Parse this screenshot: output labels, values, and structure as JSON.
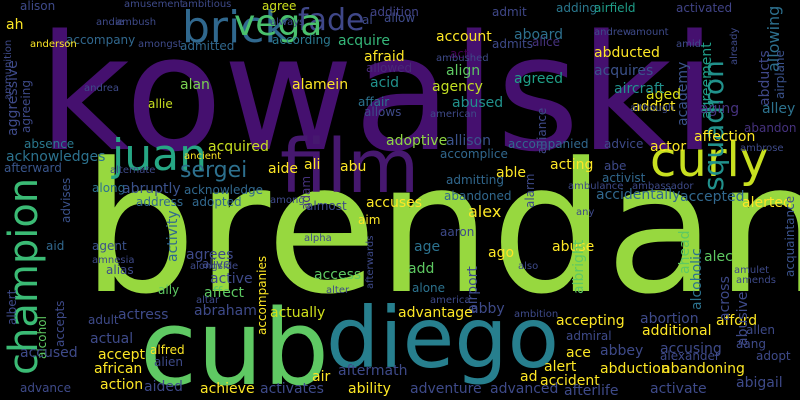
{
  "background": "#000000",
  "words": [
    {
      "text": "kowalski",
      "color": "#45106f",
      "v": false
    },
    {
      "text": "brendan",
      "color": "#97d83f",
      "v": false
    },
    {
      "text": "cub",
      "color": "#5fc963",
      "v": false
    },
    {
      "text": "diego",
      "color": "#277f8e",
      "v": false
    },
    {
      "text": "film",
      "color": "#46186f",
      "v": false
    },
    {
      "text": "champion",
      "color": "#3bbb75",
      "v": true
    },
    {
      "text": "brick",
      "color": "#30688e",
      "v": false
    },
    {
      "text": "curly",
      "color": "#c8e020",
      "v": false
    },
    {
      "text": "juan",
      "color": "#26a784",
      "v": false
    },
    {
      "text": "fade",
      "color": "#3f4788",
      "v": false
    },
    {
      "text": "vega",
      "color": "#4ac16d",
      "v": false
    },
    {
      "text": "sergei",
      "color": "#2d708e",
      "v": false
    },
    {
      "text": "squadron",
      "color": "#21918c",
      "v": true
    },
    {
      "text": "alex",
      "color": "#fde725",
      "v": false
    },
    {
      "text": "abraham",
      "color": "#3e4a89",
      "v": false
    },
    {
      "text": "actually",
      "color": "#d0e11c",
      "v": false
    },
    {
      "text": "addition",
      "color": "#414487",
      "v": false
    },
    {
      "text": "admit",
      "color": "#3f4788",
      "v": false
    },
    {
      "text": "agree",
      "color": "#cde11d",
      "v": false
    },
    {
      "text": "adding",
      "color": "#2a788e",
      "v": false
    },
    {
      "text": "airfield",
      "color": "#1f9e89",
      "v": false
    },
    {
      "text": "activated",
      "color": "#414487",
      "v": false
    },
    {
      "text": "allowing",
      "color": "#2d708e",
      "v": true
    },
    {
      "text": "abducts",
      "color": "#3f4788",
      "v": true
    },
    {
      "text": "airplane",
      "color": "#3b528b",
      "v": true
    },
    {
      "text": "agreement",
      "color": "#1f9e89",
      "v": true
    },
    {
      "text": "academy",
      "color": "#3b528b",
      "v": true
    },
    {
      "text": "abducted",
      "color": "#fde725",
      "v": false
    },
    {
      "text": "aboard",
      "color": "#2d708e",
      "v": false
    },
    {
      "text": "account",
      "color": "#fde725",
      "v": false
    },
    {
      "text": "acquires",
      "color": "#3b528b",
      "v": false
    },
    {
      "text": "accompany",
      "color": "#31688e",
      "v": false
    },
    {
      "text": "admitted",
      "color": "#31688e",
      "v": false
    },
    {
      "text": "according",
      "color": "#2a788e",
      "v": false
    },
    {
      "text": "acquire",
      "color": "#35b779",
      "v": false
    },
    {
      "text": "alice",
      "color": "#46327e",
      "v": false
    },
    {
      "text": "admits",
      "color": "#3e4a89",
      "v": false
    },
    {
      "text": "act",
      "color": "#440154",
      "v": false
    },
    {
      "text": "afraid",
      "color": "#fde725",
      "v": false
    },
    {
      "text": "allowed",
      "color": "#482878",
      "v": false
    },
    {
      "text": "align",
      "color": "#5ec962",
      "v": false
    },
    {
      "text": "agency",
      "color": "#c2df23",
      "v": false
    },
    {
      "text": "agreed",
      "color": "#1fa088",
      "v": false
    },
    {
      "text": "aged",
      "color": "#dde318",
      "v": false
    },
    {
      "text": "aircraft",
      "color": "#21918c",
      "v": false
    },
    {
      "text": "alamein",
      "color": "#fde725",
      "v": false
    },
    {
      "text": "alan",
      "color": "#7ad151",
      "v": false
    },
    {
      "text": "allie",
      "color": "#c8e020",
      "v": false
    },
    {
      "text": "acid",
      "color": "#21918c",
      "v": false
    },
    {
      "text": "affair",
      "color": "#2c728e",
      "v": false
    },
    {
      "text": "allows",
      "color": "#3e4a89",
      "v": false
    },
    {
      "text": "abused",
      "color": "#21918c",
      "v": false
    },
    {
      "text": "addict",
      "color": "#fde725",
      "v": false
    },
    {
      "text": "aging",
      "color": "#46327e",
      "v": false
    },
    {
      "text": "alley",
      "color": "#2c728e",
      "v": false
    },
    {
      "text": "abandon",
      "color": "#46327e",
      "v": false
    },
    {
      "text": "affection",
      "color": "#fde725",
      "v": false
    },
    {
      "text": "absence",
      "color": "#2a788e",
      "v": false
    },
    {
      "text": "acquired",
      "color": "#c8e020",
      "v": false
    },
    {
      "text": "adoptive",
      "color": "#8fd744",
      "v": false
    },
    {
      "text": "allison",
      "color": "#3b528b",
      "v": false
    },
    {
      "text": "accompanied",
      "color": "#31688e",
      "v": false
    },
    {
      "text": "actor",
      "color": "#fde725",
      "v": false
    },
    {
      "text": "acknowledges",
      "color": "#2c728e",
      "v": false
    },
    {
      "text": "afterward",
      "color": "#39568c",
      "v": false
    },
    {
      "text": "aide",
      "color": "#fde725",
      "v": false
    },
    {
      "text": "ali",
      "color": "#fde725",
      "v": false
    },
    {
      "text": "abu",
      "color": "#fde725",
      "v": false
    },
    {
      "text": "accomplice",
      "color": "#31688e",
      "v": false
    },
    {
      "text": "advice",
      "color": "#3e4a89",
      "v": false
    },
    {
      "text": "along",
      "color": "#2c728e",
      "v": false
    },
    {
      "text": "abruptly",
      "color": "#3b528b",
      "v": false
    },
    {
      "text": "acknowledge",
      "color": "#31688e",
      "v": false
    },
    {
      "text": "adam",
      "color": "#46327e",
      "v": true
    },
    {
      "text": "admitting",
      "color": "#31688e",
      "v": false
    },
    {
      "text": "able",
      "color": "#fde725",
      "v": false
    },
    {
      "text": "acting",
      "color": "#fde725",
      "v": false
    },
    {
      "text": "abe",
      "color": "#3e4a89",
      "v": false
    },
    {
      "text": "activist",
      "color": "#31688e",
      "v": false
    },
    {
      "text": "accepted",
      "color": "#31688e",
      "v": false
    },
    {
      "text": "alerted",
      "color": "#fde725",
      "v": false
    },
    {
      "text": "address",
      "color": "#31688e",
      "v": false
    },
    {
      "text": "adopted",
      "color": "#31688e",
      "v": false
    },
    {
      "text": "almost",
      "color": "#3e4a89",
      "v": false
    },
    {
      "text": "accuses",
      "color": "#fde725",
      "v": false
    },
    {
      "text": "abandoned",
      "color": "#31688e",
      "v": false
    },
    {
      "text": "accidentally",
      "color": "#31688e",
      "v": false
    },
    {
      "text": "advises",
      "color": "#3b528b",
      "v": true
    },
    {
      "text": "aid",
      "color": "#31688e",
      "v": false
    },
    {
      "text": "agent",
      "color": "#3b528b",
      "v": false
    },
    {
      "text": "activity",
      "color": "#31688e",
      "v": true
    },
    {
      "text": "aim",
      "color": "#fde725",
      "v": false
    },
    {
      "text": "age",
      "color": "#2c728e",
      "v": false
    },
    {
      "text": "ago",
      "color": "#fde725",
      "v": false
    },
    {
      "text": "abuse",
      "color": "#fde725",
      "v": false
    },
    {
      "text": "ahead",
      "color": "#5ec962",
      "v": true
    },
    {
      "text": "alcoholic",
      "color": "#2c728e",
      "v": true
    },
    {
      "text": "alec",
      "color": "#5ec962",
      "v": false
    },
    {
      "text": "acquaintance",
      "color": "#3b528b",
      "v": true
    },
    {
      "text": "agrees",
      "color": "#3e4a89",
      "v": false
    },
    {
      "text": "alias",
      "color": "#3e4a89",
      "v": false
    },
    {
      "text": "active",
      "color": "#3e4a89",
      "v": false
    },
    {
      "text": "affect",
      "color": "#5ec962",
      "v": false
    },
    {
      "text": "access",
      "color": "#5ec962",
      "v": false
    },
    {
      "text": "add",
      "color": "#5ec962",
      "v": false
    },
    {
      "text": "alone",
      "color": "#2c728e",
      "v": false
    },
    {
      "text": "airport",
      "color": "#3e4a89",
      "v": true
    },
    {
      "text": "albright",
      "color": "#5ec962",
      "v": true
    },
    {
      "text": "ally",
      "color": "#5ec962",
      "v": false
    },
    {
      "text": "accompanies",
      "color": "#fde725",
      "v": true
    },
    {
      "text": "abby",
      "color": "#3e4a89",
      "v": false
    },
    {
      "text": "advantage",
      "color": "#fde725",
      "v": false
    },
    {
      "text": "albert",
      "color": "#3e4a89",
      "v": true
    },
    {
      "text": "alcohol",
      "color": "#5ec962",
      "v": true
    },
    {
      "text": "accepts",
      "color": "#3e4a89",
      "v": true
    },
    {
      "text": "adult",
      "color": "#3e4a89",
      "v": false
    },
    {
      "text": "actress",
      "color": "#3e4a89",
      "v": false
    },
    {
      "text": "abortion",
      "color": "#3e4a89",
      "v": false
    },
    {
      "text": "afford",
      "color": "#fde725",
      "v": false
    },
    {
      "text": "allen",
      "color": "#3e4a89",
      "v": false
    },
    {
      "text": "actual",
      "color": "#3e4a89",
      "v": false
    },
    {
      "text": "accepting",
      "color": "#fde725",
      "v": false
    },
    {
      "text": "additional",
      "color": "#fde725",
      "v": false
    },
    {
      "text": "admiral",
      "color": "#3e4a89",
      "v": false
    },
    {
      "text": "aang",
      "color": "#3e4a89",
      "v": false
    },
    {
      "text": "accept",
      "color": "#fde725",
      "v": false
    },
    {
      "text": "alfred",
      "color": "#fde725",
      "v": false
    },
    {
      "text": "alien",
      "color": "#3e4a89",
      "v": false
    },
    {
      "text": "abbey",
      "color": "#3e4a89",
      "v": false
    },
    {
      "text": "accusing",
      "color": "#3e4a89",
      "v": false
    },
    {
      "text": "ace",
      "color": "#fde725",
      "v": false
    },
    {
      "text": "alexander",
      "color": "#3e4a89",
      "v": false
    },
    {
      "text": "adopt",
      "color": "#3e4a89",
      "v": false
    },
    {
      "text": "accused",
      "color": "#3e4a89",
      "v": false
    },
    {
      "text": "african",
      "color": "#fde725",
      "v": false
    },
    {
      "text": "alert",
      "color": "#fde725",
      "v": false
    },
    {
      "text": "abduction",
      "color": "#fde725",
      "v": false
    },
    {
      "text": "abandoning",
      "color": "#fde725",
      "v": false
    },
    {
      "text": "action",
      "color": "#fde725",
      "v": false
    },
    {
      "text": "air",
      "color": "#fde725",
      "v": false
    },
    {
      "text": "aftermath",
      "color": "#3e4a89",
      "v": false
    },
    {
      "text": "ad",
      "color": "#fde725",
      "v": false
    },
    {
      "text": "accident",
      "color": "#fde725",
      "v": false
    },
    {
      "text": "abigail",
      "color": "#3e4a89",
      "v": false
    },
    {
      "text": "aided",
      "color": "#3e4a89",
      "v": false
    },
    {
      "text": "achieve",
      "color": "#fde725",
      "v": false
    },
    {
      "text": "activates",
      "color": "#3e4a89",
      "v": false
    },
    {
      "text": "ability",
      "color": "#fde725",
      "v": false
    },
    {
      "text": "adventure",
      "color": "#3e4a89",
      "v": false
    },
    {
      "text": "advanced",
      "color": "#3e4a89",
      "v": false
    },
    {
      "text": "afterlife",
      "color": "#3e4a89",
      "v": false
    },
    {
      "text": "activate",
      "color": "#3e4a89",
      "v": false
    },
    {
      "text": "advance",
      "color": "#3e4a89",
      "v": false
    },
    {
      "text": "alison",
      "color": "#3e4a89",
      "v": false
    },
    {
      "text": "andie",
      "color": "#3e4a89",
      "v": false
    },
    {
      "text": "amusement",
      "color": "#3e4a89",
      "v": false
    },
    {
      "text": "ambush",
      "color": "#3e4a89",
      "v": false
    },
    {
      "text": "ambitious",
      "color": "#3e4a89",
      "v": false
    },
    {
      "text": "always",
      "color": "#3e4a89",
      "v": false
    },
    {
      "text": "ah",
      "color": "#fde725",
      "v": false
    },
    {
      "text": "anderson",
      "color": "#fde725",
      "v": false
    },
    {
      "text": "amongst",
      "color": "#3e4a89",
      "v": false
    },
    {
      "text": "andrea",
      "color": "#3e4a89",
      "v": false
    },
    {
      "text": "al",
      "color": "#3e4a89",
      "v": false
    },
    {
      "text": "allow",
      "color": "#3e4a89",
      "v": false
    },
    {
      "text": "already",
      "color": "#3e4a89",
      "v": true
    },
    {
      "text": "amid",
      "color": "#3e4a89",
      "v": false
    },
    {
      "text": "andrew",
      "color": "#3e4a89",
      "v": false
    },
    {
      "text": "amount",
      "color": "#3e4a89",
      "v": false
    },
    {
      "text": "ambushed",
      "color": "#3e4a89",
      "v": false
    },
    {
      "text": "american",
      "color": "#3e4a89",
      "v": false
    },
    {
      "text": "alliance",
      "color": "#3e4a89",
      "v": true
    },
    {
      "text": "although",
      "color": "#3e4a89",
      "v": false
    },
    {
      "text": "ambrose",
      "color": "#3e4a89",
      "v": false
    },
    {
      "text": "ancient",
      "color": "#fde725",
      "v": false
    },
    {
      "text": "alternate",
      "color": "#3e4a89",
      "v": false
    },
    {
      "text": "ambulance",
      "color": "#3e4a89",
      "v": false
    },
    {
      "text": "ambassador",
      "color": "#3e4a89",
      "v": false
    },
    {
      "text": "among",
      "color": "#3e4a89",
      "v": false
    },
    {
      "text": "alarm",
      "color": "#3e4a89",
      "v": true
    },
    {
      "text": "any",
      "color": "#3e4a89",
      "v": false
    },
    {
      "text": "alpha",
      "color": "#3e4a89",
      "v": false
    },
    {
      "text": "amnesia",
      "color": "#3e4a89",
      "v": false
    },
    {
      "text": "alongside",
      "color": "#3e4a89",
      "v": false
    },
    {
      "text": "alive",
      "color": "#3e4a89",
      "v": false
    },
    {
      "text": "altar",
      "color": "#3e4a89",
      "v": false
    },
    {
      "text": "aaron",
      "color": "#3e4a89",
      "v": false
    },
    {
      "text": "also",
      "color": "#3e4a89",
      "v": false
    },
    {
      "text": "amulet",
      "color": "#3e4a89",
      "v": false
    },
    {
      "text": "amends",
      "color": "#3e4a89",
      "v": false
    },
    {
      "text": "afterwards",
      "color": "#3e4a89",
      "v": true
    },
    {
      "text": "alter",
      "color": "#3e4a89",
      "v": false
    },
    {
      "text": "america",
      "color": "#3e4a89",
      "v": false
    },
    {
      "text": "ambition",
      "color": "#3e4a89",
      "v": false
    },
    {
      "text": "across",
      "color": "#3e4a89",
      "v": true
    },
    {
      "text": "abusive",
      "color": "#3e4a89",
      "v": true
    },
    {
      "text": "ammunition",
      "color": "#3e4a89",
      "v": true
    },
    {
      "text": "aggressive",
      "color": "#3e4a89",
      "v": true
    },
    {
      "text": "agreeing",
      "color": "#3e4a89",
      "v": true
    }
  ]
}
